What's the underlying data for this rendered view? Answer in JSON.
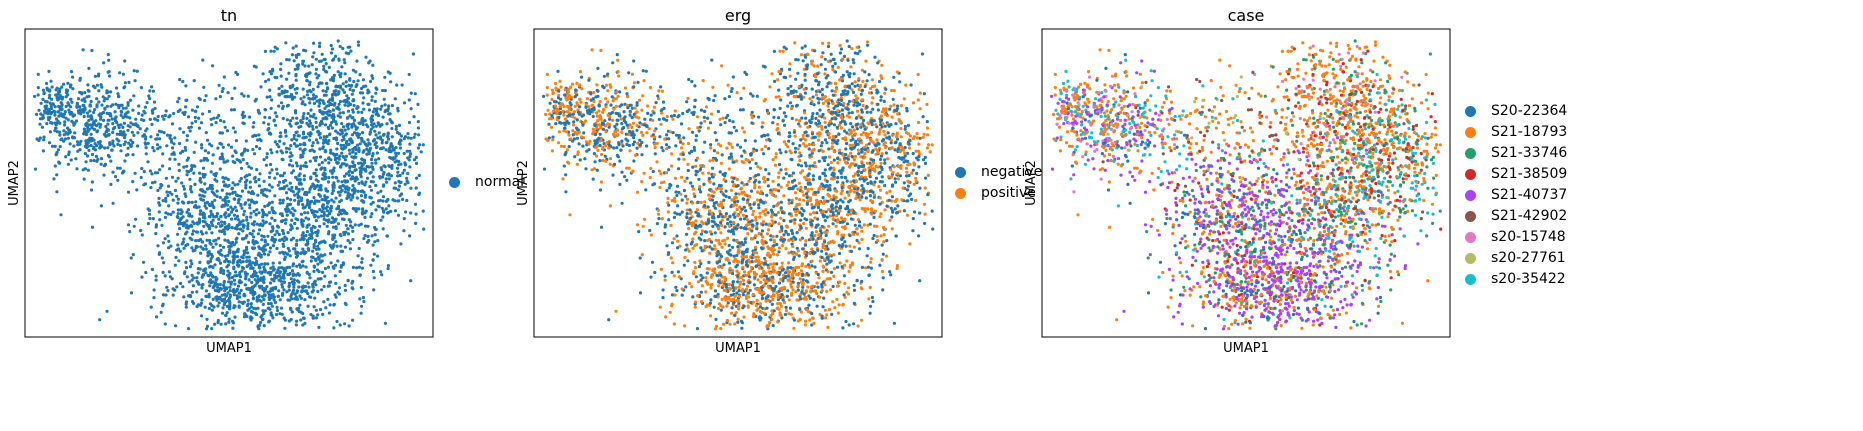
{
  "chart_data": [
    {
      "type": "scatter",
      "title": "tn",
      "xlabel": "UMAP1",
      "ylabel": "UMAP2",
      "grid": false,
      "legend_placement": "right",
      "series": [
        {
          "name": "normal",
          "color": "#1f77b4"
        }
      ]
    },
    {
      "type": "scatter",
      "title": "erg",
      "xlabel": "UMAP1",
      "ylabel": "UMAP2",
      "grid": false,
      "legend_placement": "right",
      "series": [
        {
          "name": "negative",
          "color": "#1f77b4"
        },
        {
          "name": "positive",
          "color": "#ff7f0e"
        }
      ]
    },
    {
      "type": "scatter",
      "title": "case",
      "xlabel": "UMAP1",
      "ylabel": "UMAP2",
      "grid": false,
      "legend_placement": "right",
      "series": [
        {
          "name": "S20-22364",
          "color": "#1f77b4"
        },
        {
          "name": "S21-18793",
          "color": "#ff7f0e"
        },
        {
          "name": "S21-33746",
          "color": "#279e68"
        },
        {
          "name": "S21-38509",
          "color": "#d62728"
        },
        {
          "name": "S21-40737",
          "color": "#aa40fc"
        },
        {
          "name": "S21-42902",
          "color": "#8c564b"
        },
        {
          "name": "s20-15748",
          "color": "#e377c2"
        },
        {
          "name": "s20-27761",
          "color": "#b5bd61"
        },
        {
          "name": "s20-35422",
          "color": "#17becf"
        }
      ]
    }
  ]
}
